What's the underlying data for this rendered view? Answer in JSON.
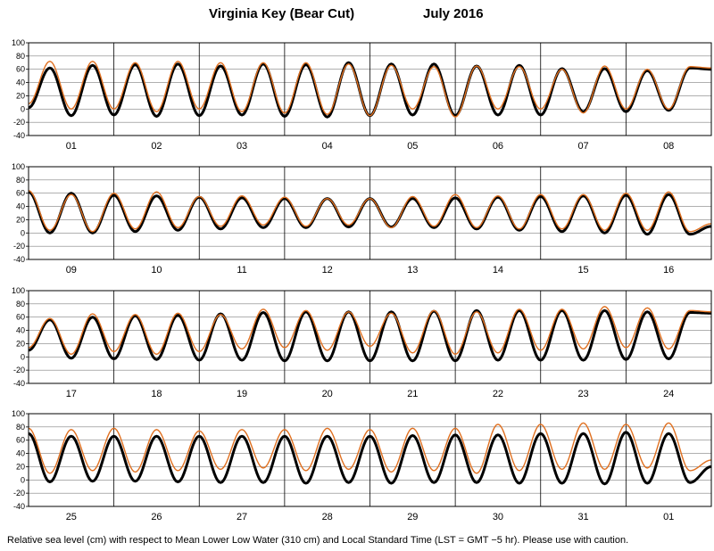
{
  "header": {
    "station": "Virginia Key (Bear Cut)",
    "period": "July   2016"
  },
  "footer": {
    "note": "Relative sea level (cm) with respect to Mean Lower Low Water (310 cm) and Local Standard Time (LST = GMT −5 hr). Please use with caution."
  },
  "colors": {
    "predicted": "#000000",
    "observed": "#e07020",
    "grid": "#808080"
  },
  "chart_data": [
    {
      "type": "line",
      "days": [
        "01",
        "02",
        "03",
        "04",
        "05",
        "06",
        "07",
        "08"
      ],
      "ylim": [
        -40,
        100
      ],
      "yticks": [
        -40,
        -20,
        0,
        20,
        40,
        60,
        80,
        100
      ],
      "grid": true,
      "series": [
        {
          "key": "predicted",
          "x": [
            0,
            0.25,
            0.5,
            0.75,
            1,
            1.25,
            1.5,
            1.75,
            2,
            2.25,
            2.5,
            2.75,
            3,
            3.25,
            3.5,
            3.75,
            4,
            4.25,
            4.5,
            4.75,
            5,
            5.25,
            5.5,
            5.75,
            6,
            6.25,
            6.5,
            6.75,
            7,
            7.25,
            7.5,
            7.75,
            8
          ],
          "values": [
            2,
            62,
            -10,
            66,
            -9,
            67,
            -11,
            68,
            -10,
            65,
            -9,
            68,
            -11,
            67,
            -12,
            70,
            -10,
            68,
            -9,
            68,
            -10,
            65,
            -9,
            66,
            -9,
            61,
            -4,
            61,
            -4,
            58,
            -2,
            62,
            60
          ]
        },
        {
          "key": "observed",
          "x": [
            0,
            0.25,
            0.5,
            0.75,
            1,
            1.25,
            1.5,
            1.75,
            2,
            2.25,
            2.5,
            2.75,
            3,
            3.25,
            3.5,
            3.75,
            4,
            4.25,
            4.5,
            4.75,
            5,
            5.25,
            5.5,
            5.75,
            6,
            6.25,
            6.5,
            6.75,
            7,
            7.25,
            7.5,
            7.75,
            8
          ],
          "values": [
            8,
            72,
            0,
            72,
            0,
            70,
            -4,
            72,
            0,
            70,
            -4,
            70,
            -6,
            70,
            -8,
            68,
            -10,
            66,
            0,
            64,
            -12,
            65,
            0,
            64,
            0,
            60,
            -6,
            65,
            0,
            60,
            0,
            64,
            62
          ]
        }
      ]
    },
    {
      "type": "line",
      "days": [
        "09",
        "10",
        "11",
        "12",
        "13",
        "14",
        "15",
        "16"
      ],
      "ylim": [
        -40,
        100
      ],
      "yticks": [
        -40,
        -20,
        0,
        20,
        40,
        60,
        80,
        100
      ],
      "grid": true,
      "series": [
        {
          "key": "predicted",
          "x": [
            0,
            0.25,
            0.5,
            0.75,
            1,
            1.25,
            1.5,
            1.75,
            2,
            2.25,
            2.5,
            2.75,
            3,
            3.25,
            3.5,
            3.75,
            4,
            4.25,
            4.5,
            4.75,
            5,
            5.25,
            5.5,
            5.75,
            6,
            6.25,
            6.5,
            6.75,
            7,
            7.25,
            7.5,
            7.75,
            8
          ],
          "values": [
            62,
            0,
            60,
            0,
            57,
            2,
            56,
            4,
            54,
            6,
            53,
            8,
            52,
            8,
            52,
            9,
            52,
            9,
            52,
            8,
            53,
            6,
            54,
            4,
            55,
            2,
            56,
            0,
            57,
            -2,
            58,
            -2,
            10
          ]
        },
        {
          "key": "observed",
          "x": [
            0,
            0.25,
            0.5,
            0.75,
            1,
            1.25,
            1.5,
            1.75,
            2,
            2.25,
            2.5,
            2.75,
            3,
            3.25,
            3.5,
            3.75,
            4,
            4.25,
            4.5,
            4.75,
            5,
            5.25,
            5.5,
            5.75,
            6,
            6.25,
            6.5,
            6.75,
            7,
            7.25,
            7.5,
            7.75,
            8
          ],
          "values": [
            64,
            4,
            58,
            2,
            60,
            6,
            62,
            8,
            55,
            10,
            56,
            12,
            54,
            10,
            52,
            12,
            52,
            8,
            55,
            10,
            58,
            8,
            56,
            6,
            58,
            6,
            58,
            4,
            60,
            4,
            62,
            2,
            14
          ]
        }
      ]
    },
    {
      "type": "line",
      "days": [
        "17",
        "18",
        "19",
        "20",
        "21",
        "22",
        "23",
        "24"
      ],
      "ylim": [
        -40,
        100
      ],
      "yticks": [
        -40,
        -20,
        0,
        20,
        40,
        60,
        80,
        100
      ],
      "grid": true,
      "series": [
        {
          "key": "predicted",
          "x": [
            0,
            0.25,
            0.5,
            0.75,
            1,
            1.25,
            1.5,
            1.75,
            2,
            2.25,
            2.5,
            2.75,
            3,
            3.25,
            3.5,
            3.75,
            4,
            4.25,
            4.5,
            4.75,
            5,
            5.25,
            5.5,
            5.75,
            6,
            6.25,
            6.5,
            6.75,
            7,
            7.25,
            7.5,
            7.75,
            8
          ],
          "values": [
            10,
            56,
            -2,
            60,
            -3,
            62,
            -4,
            63,
            -5,
            65,
            -5,
            67,
            -6,
            68,
            -6,
            68,
            -6,
            68,
            -6,
            69,
            -6,
            70,
            -5,
            70,
            -5,
            70,
            -5,
            70,
            -4,
            68,
            -3,
            67,
            66
          ]
        },
        {
          "key": "observed",
          "x": [
            0,
            0.25,
            0.5,
            0.75,
            1,
            1.25,
            1.5,
            1.75,
            2,
            2.25,
            2.5,
            2.75,
            3,
            3.25,
            3.5,
            3.75,
            4,
            4.25,
            4.5,
            4.75,
            5,
            5.25,
            5.5,
            5.75,
            6,
            6.25,
            6.5,
            6.75,
            7,
            7.25,
            7.5,
            7.75,
            8
          ],
          "values": [
            14,
            58,
            4,
            65,
            8,
            64,
            4,
            66,
            8,
            64,
            12,
            72,
            14,
            70,
            10,
            68,
            16,
            66,
            6,
            70,
            4,
            68,
            6,
            72,
            10,
            72,
            12,
            76,
            14,
            74,
            12,
            70,
            68
          ]
        }
      ]
    },
    {
      "type": "line",
      "days": [
        "25",
        "26",
        "27",
        "28",
        "29",
        "30",
        "31",
        "01"
      ],
      "ylim": [
        -40,
        100
      ],
      "yticks": [
        -40,
        -20,
        0,
        20,
        40,
        60,
        80,
        100
      ],
      "grid": true,
      "series": [
        {
          "key": "predicted",
          "x": [
            0,
            0.25,
            0.5,
            0.75,
            1,
            1.25,
            1.5,
            1.75,
            2,
            2.25,
            2.5,
            2.75,
            3,
            3.25,
            3.5,
            3.75,
            4,
            4.25,
            4.5,
            4.75,
            5,
            5.25,
            5.5,
            5.75,
            6,
            6.25,
            6.5,
            6.75,
            7,
            7.25,
            7.5,
            7.75,
            8
          ],
          "values": [
            70,
            -3,
            66,
            -2,
            66,
            -2,
            66,
            -3,
            66,
            -4,
            66,
            -4,
            66,
            -5,
            66,
            -4,
            66,
            -5,
            67,
            -4,
            68,
            -4,
            68,
            -5,
            70,
            -5,
            70,
            -6,
            72,
            -5,
            70,
            -4,
            20
          ]
        },
        {
          "key": "observed",
          "x": [
            0,
            0.25,
            0.5,
            0.75,
            1,
            1.25,
            1.5,
            1.75,
            2,
            2.25,
            2.5,
            2.75,
            3,
            3.25,
            3.5,
            3.75,
            4,
            4.25,
            4.5,
            4.75,
            5,
            5.25,
            5.5,
            5.75,
            6,
            6.25,
            6.5,
            6.75,
            7,
            7.25,
            7.5,
            7.75,
            8
          ],
          "values": [
            78,
            10,
            76,
            14,
            78,
            12,
            76,
            14,
            74,
            16,
            76,
            18,
            76,
            14,
            78,
            16,
            76,
            12,
            78,
            14,
            78,
            10,
            84,
            14,
            84,
            16,
            86,
            16,
            84,
            18,
            86,
            14,
            30
          ]
        }
      ]
    }
  ]
}
